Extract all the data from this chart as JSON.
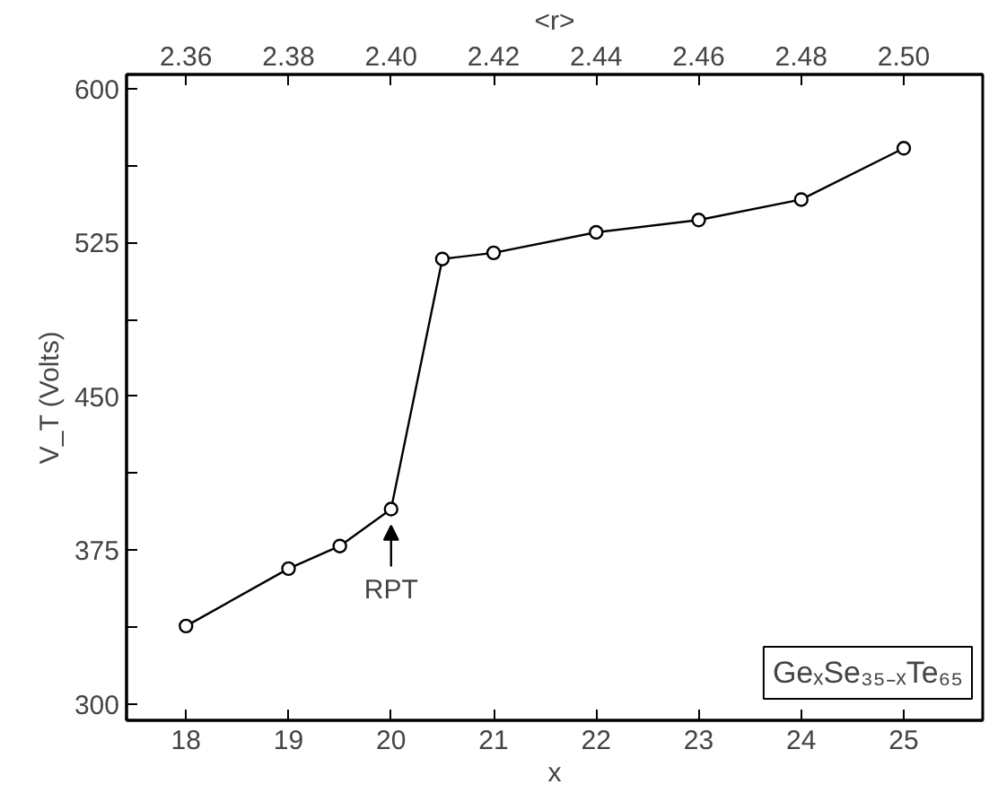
{
  "chart_data": {
    "type": "line",
    "xlabel": "x",
    "ylabel": "V_T (Volts)",
    "x2label": "<r>",
    "x": [
      18,
      19,
      19.5,
      20,
      20.5,
      21,
      22,
      23,
      24,
      25
    ],
    "series": [
      {
        "color": "#000000",
        "values": [
          338,
          366,
          377,
          395,
          517,
          520,
          530,
          536,
          546,
          571
        ]
      }
    ],
    "xlim": [
      17.42,
      25.77
    ],
    "xticks": [
      18,
      19,
      20,
      21,
      22,
      23,
      24,
      25
    ],
    "x2lim": [
      2.3484,
      2.5154
    ],
    "x2ticks": [
      {
        "value": 2.36,
        "label": "2.36"
      },
      {
        "value": 2.38,
        "label": "2.38"
      },
      {
        "value": 2.4,
        "label": "2.40"
      },
      {
        "value": 2.42,
        "label": "2.42"
      },
      {
        "value": 2.44,
        "label": "2.44"
      },
      {
        "value": 2.46,
        "label": "2.46"
      },
      {
        "value": 2.48,
        "label": "2.48"
      },
      {
        "value": 2.5,
        "label": "2.50"
      }
    ],
    "ylim": [
      292,
      607
    ],
    "yticks": [
      300,
      {
        "value": 337.5,
        "label": null
      },
      375,
      {
        "value": 412.5,
        "label": null
      },
      450,
      {
        "value": 487.5,
        "label": null
      },
      525,
      {
        "value": 562.5,
        "label": null
      },
      600
    ],
    "marker": "circle",
    "line_style": "solid",
    "grid": false,
    "annotations": [
      {
        "text": "RPT",
        "x": 20,
        "y": 395
      },
      "GeₓSe₃₅₋ₓTe₆₅"
    ]
  }
}
